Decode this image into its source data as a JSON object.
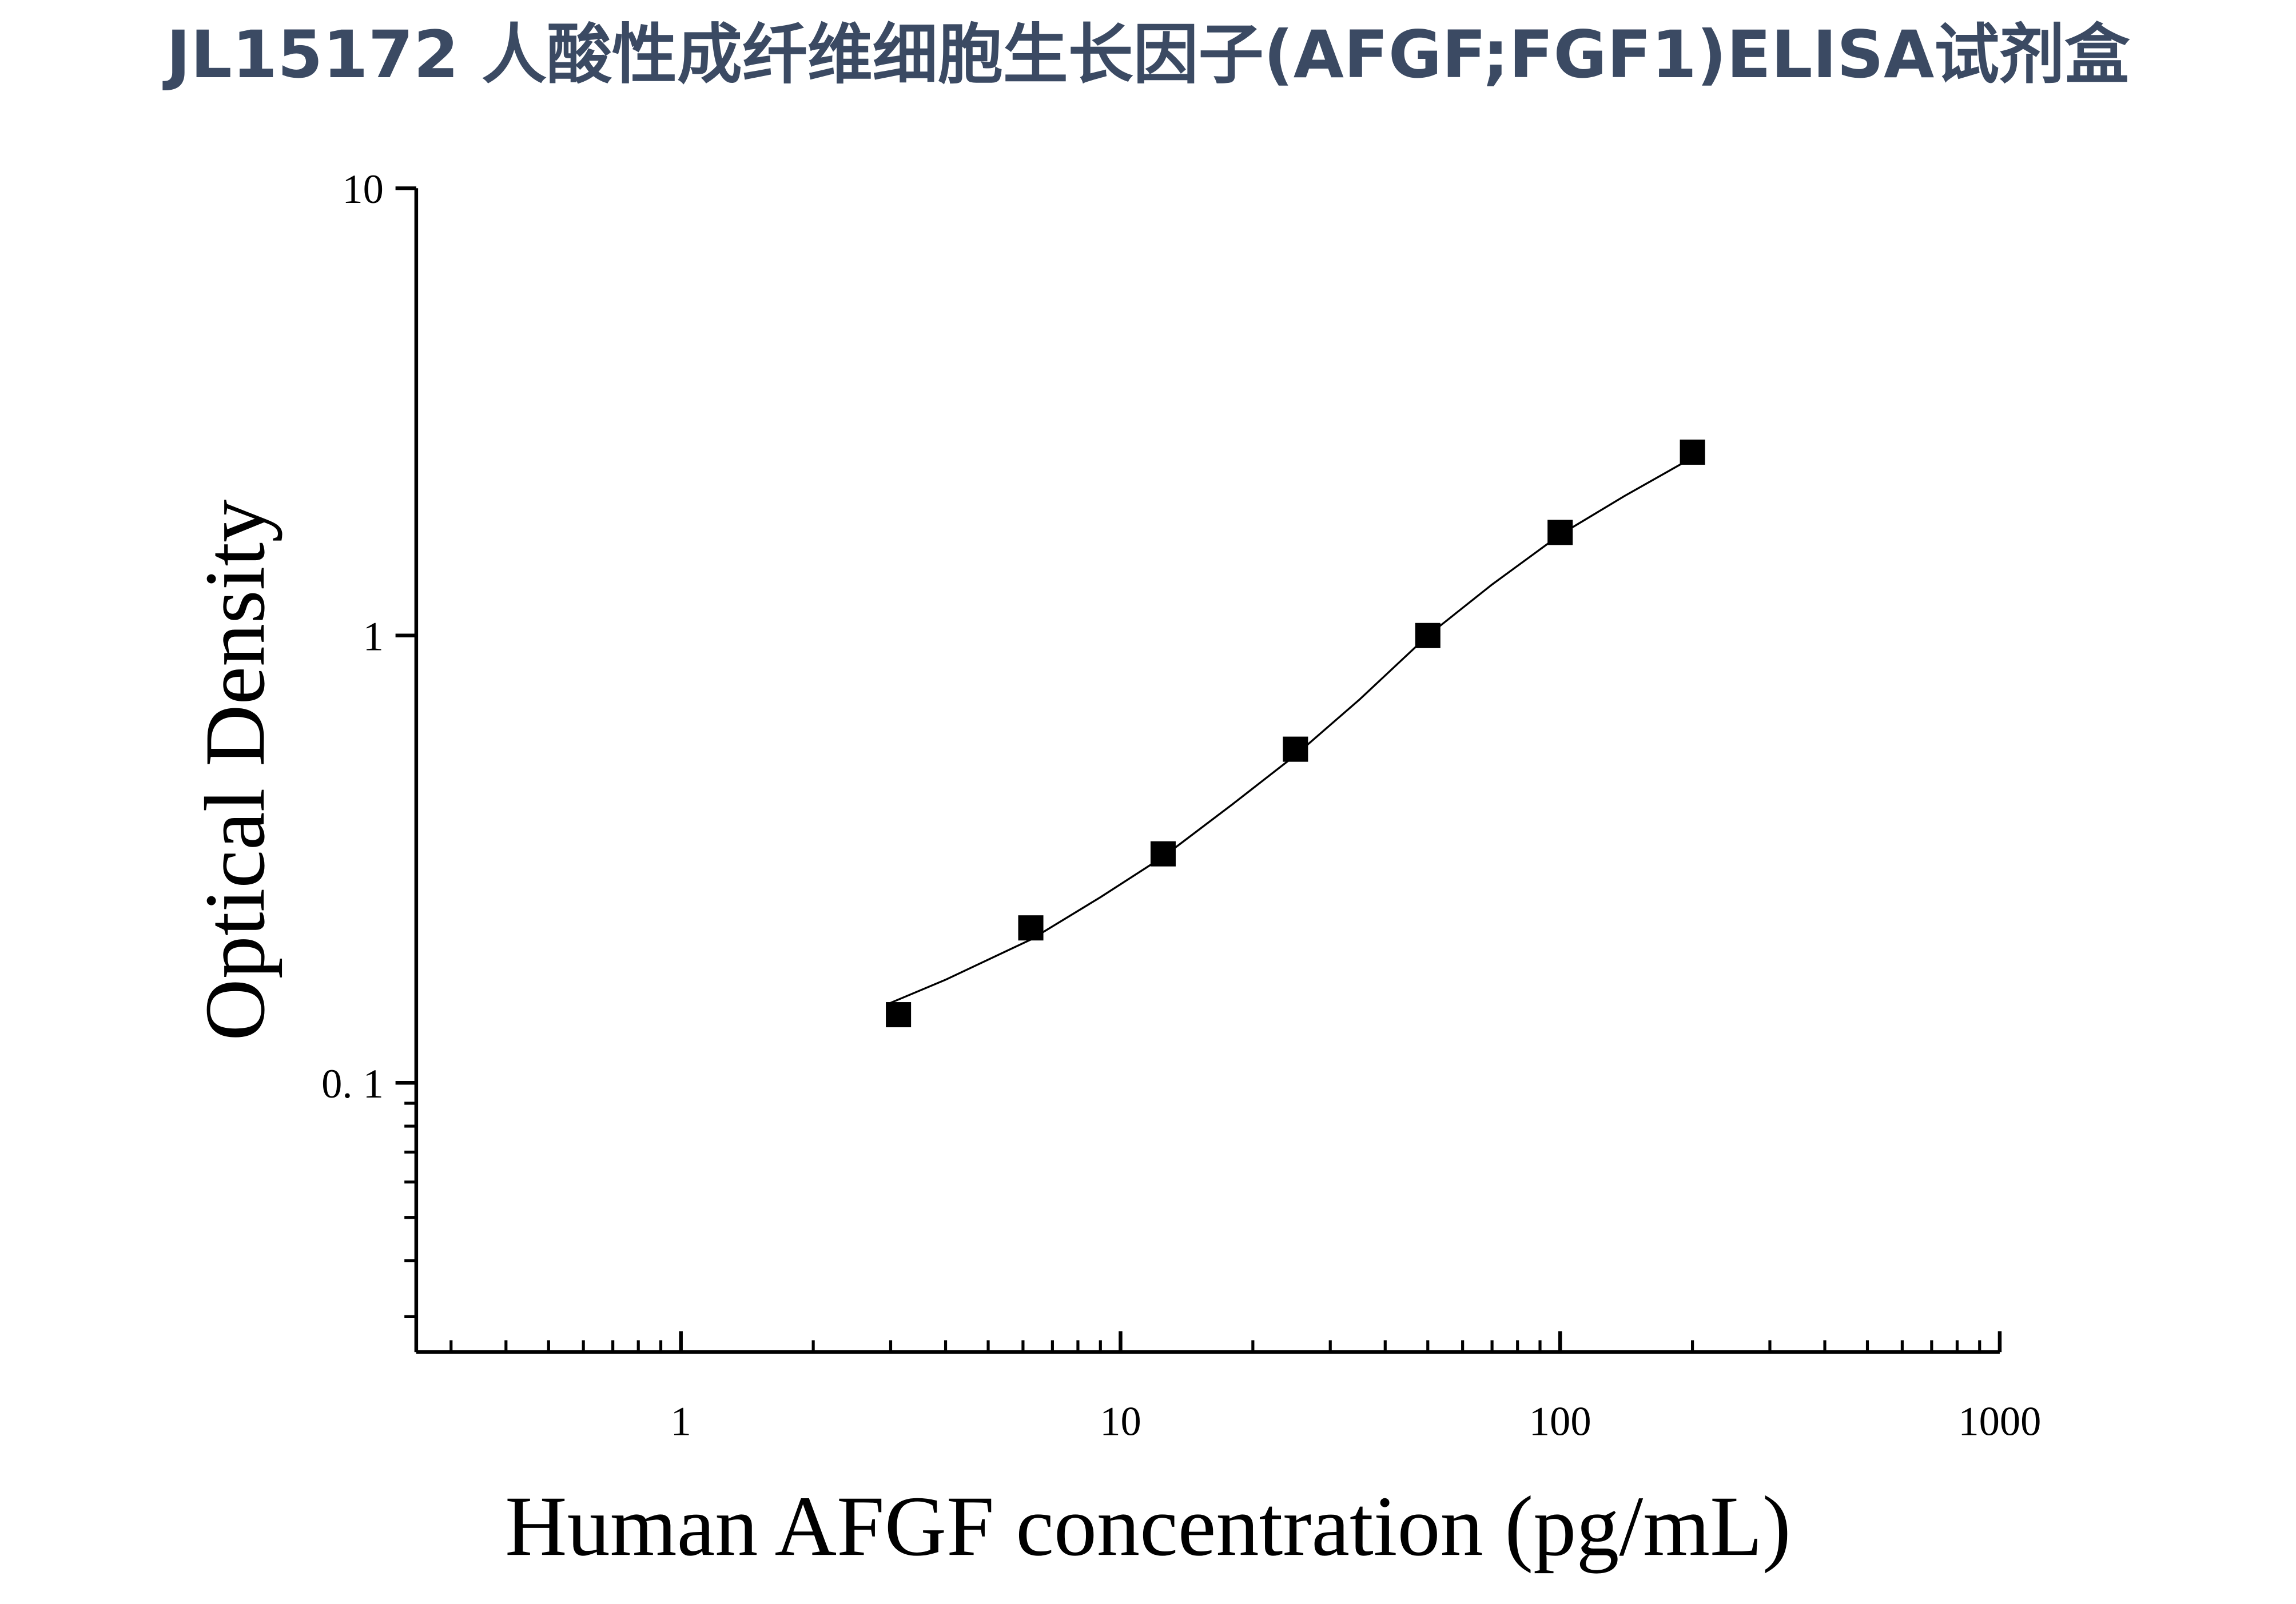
{
  "chart_data": {
    "type": "scatter",
    "title": "JL15172 人酸性成纤维细胞生长因子(AFGF;FGF1)ELISA试剂盒",
    "x_label": "Human AFGF concentration (pg/mL)",
    "y_label": "Optical Density",
    "x": [
      3.125,
      6.25,
      12.5,
      25,
      50,
      100,
      200
    ],
    "values": [
      0.142,
      0.222,
      0.325,
      0.557,
      1.0,
      1.7,
      2.57
    ],
    "color": "#000000",
    "curve": {
      "x": [
        3,
        4,
        6.25,
        9,
        12.5,
        18,
        25,
        35,
        50,
        70,
        100,
        140,
        200
      ],
      "values": [
        0.151,
        0.17,
        0.209,
        0.26,
        0.32,
        0.42,
        0.54,
        0.72,
        1.0,
        1.3,
        1.68,
        2.05,
        2.5
      ]
    },
    "xlog": true,
    "ylog": true,
    "xlim": [
      0.25,
      1000
    ],
    "ylim": [
      0.025,
      10
    ],
    "xticks": [
      1,
      10,
      100,
      1000
    ],
    "yticks": [
      10,
      1,
      {
        "value": 0.1,
        "label": "0. 1"
      }
    ],
    "xminor_ticks": [
      0.3,
      0.4,
      0.5,
      0.6,
      0.7,
      0.8,
      0.9,
      2,
      3,
      4,
      5,
      6,
      7,
      8,
      9,
      20,
      30,
      40,
      50,
      60,
      70,
      80,
      90,
      200,
      300,
      400,
      500,
      600,
      700,
      800,
      900
    ],
    "yminor_ticks": [
      0.03,
      0.04,
      0.05,
      0.06,
      0.07,
      0.08,
      0.09
    ]
  }
}
